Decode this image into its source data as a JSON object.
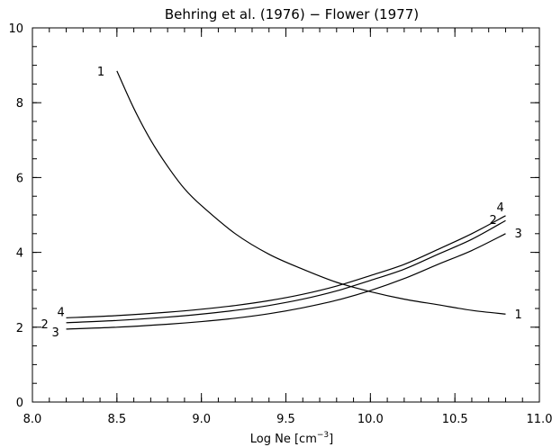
{
  "chart_data": {
    "type": "line",
    "title": "Behring et al. (1976) − Flower (1977)",
    "xlabel": {
      "main": "Log Ne [cm",
      "sup": "−3",
      "close": "]"
    },
    "ylabel": "",
    "xlim": [
      8.0,
      11.0
    ],
    "ylim": [
      0,
      10
    ],
    "x_ticks": [
      8.0,
      8.5,
      9.0,
      9.5,
      10.0,
      10.5,
      11.0
    ],
    "x_tick_labels": [
      "8.0",
      "8.5",
      "9.0",
      "9.5",
      "10.0",
      "10.5",
      "11.0"
    ],
    "y_ticks": [
      0,
      2,
      4,
      6,
      8,
      10
    ],
    "y_tick_labels": [
      "0",
      "2",
      "4",
      "6",
      "8",
      "10"
    ],
    "x_minor_step": 0.1,
    "y_minor_step": 0.5,
    "grid": false,
    "series": [
      {
        "name": "1",
        "x": [
          8.5,
          8.6,
          8.7,
          8.8,
          8.9,
          9.0,
          9.2,
          9.4,
          9.6,
          9.8,
          10.0,
          10.2,
          10.4,
          10.6,
          10.8
        ],
        "y": [
          8.85,
          7.85,
          7.0,
          6.3,
          5.7,
          5.25,
          4.5,
          3.95,
          3.55,
          3.2,
          2.95,
          2.75,
          2.6,
          2.45,
          2.35
        ]
      },
      {
        "name": "2",
        "x": [
          8.2,
          8.5,
          8.8,
          9.0,
          9.2,
          9.4,
          9.6,
          9.8,
          10.0,
          10.2,
          10.4,
          10.6,
          10.8
        ],
        "y": [
          2.12,
          2.18,
          2.27,
          2.35,
          2.45,
          2.58,
          2.75,
          2.97,
          3.25,
          3.55,
          3.95,
          4.35,
          4.85
        ]
      },
      {
        "name": "3",
        "x": [
          8.2,
          8.5,
          8.8,
          9.0,
          9.2,
          9.4,
          9.6,
          9.8,
          10.0,
          10.2,
          10.4,
          10.6,
          10.8
        ],
        "y": [
          1.95,
          2.0,
          2.08,
          2.15,
          2.24,
          2.36,
          2.52,
          2.72,
          2.98,
          3.3,
          3.68,
          4.05,
          4.5
        ]
      },
      {
        "name": "4",
        "x": [
          8.2,
          8.5,
          8.8,
          9.0,
          9.2,
          9.4,
          9.6,
          9.8,
          10.0,
          10.2,
          10.4,
          10.6,
          10.8
        ],
        "y": [
          2.25,
          2.31,
          2.4,
          2.48,
          2.58,
          2.71,
          2.88,
          3.1,
          3.38,
          3.68,
          4.08,
          4.5,
          4.98
        ]
      }
    ],
    "annotations": [
      {
        "text": "1",
        "series": "1",
        "end": "start"
      },
      {
        "text": "1",
        "series": "1",
        "end": "end"
      },
      {
        "text": "2",
        "series": "2",
        "end": "start"
      },
      {
        "text": "2",
        "series": "2",
        "end": "end"
      },
      {
        "text": "3",
        "series": "3",
        "end": "start"
      },
      {
        "text": "3",
        "series": "3",
        "end": "end"
      },
      {
        "text": "4",
        "series": "4",
        "end": "start"
      },
      {
        "text": "4",
        "series": "4",
        "end": "end"
      }
    ]
  }
}
